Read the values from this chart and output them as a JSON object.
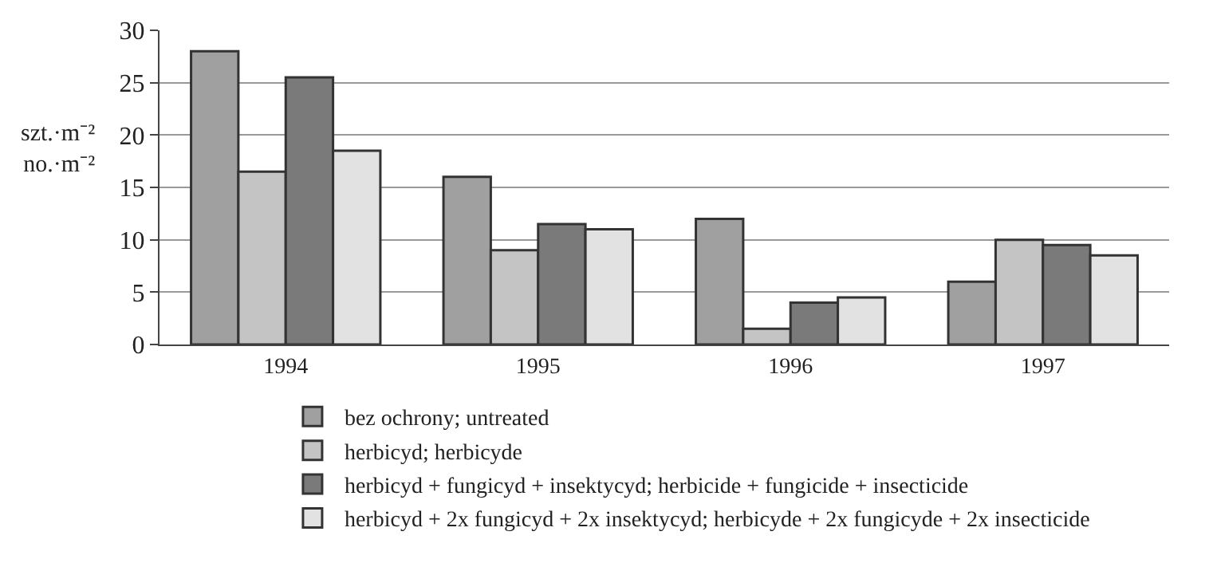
{
  "chart_data": {
    "type": "bar",
    "ylabel": "szt.·m⁻²\nno.·m⁻²",
    "categories": [
      "1994",
      "1995",
      "1996",
      "1997"
    ],
    "series": [
      {
        "name": "bez ochrony; untreated",
        "color": "#a0a0a0",
        "values": [
          28,
          16,
          12,
          6
        ]
      },
      {
        "name": "herbicyd; herbicyde",
        "color": "#c4c4c4",
        "values": [
          16.5,
          9,
          1.5,
          10
        ]
      },
      {
        "name": "herbicyd + fungicyd + insektycyd; herbicide + fungicide + insecticide",
        "color": "#7a7a7a",
        "values": [
          25.5,
          11.5,
          4,
          9.5
        ]
      },
      {
        "name": "herbicyd + 2x fungicyd + 2x insektycyd; herbicyde + 2x fungicyde + 2x insecticide",
        "color": "#e2e2e2",
        "values": [
          18.5,
          11,
          4.5,
          8.5
        ]
      }
    ],
    "ylim": [
      0,
      30
    ],
    "yticks": [
      0,
      5,
      10,
      15,
      20,
      25,
      30
    ],
    "grid": "y",
    "legend": "bottom left"
  }
}
